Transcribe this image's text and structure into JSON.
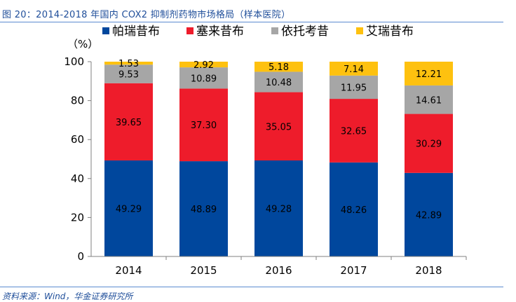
{
  "figure": {
    "title": "图 20：2014-2018 年国内 COX2 抑制剂药物市场格局（样本医院）",
    "source": "资料来源：Wind，华金证券研究所"
  },
  "chart_data": {
    "type": "bar",
    "stacked": true,
    "ylabel": "（%）",
    "ylim": [
      0,
      100
    ],
    "yticks": [
      0,
      20,
      40,
      60,
      80,
      100
    ],
    "categories": [
      "2014",
      "2015",
      "2016",
      "2017",
      "2018"
    ],
    "legend_position": "top",
    "series": [
      {
        "name": "帕瑞昔布",
        "color": "#00479d",
        "values": [
          49.29,
          48.89,
          49.28,
          48.26,
          42.89
        ]
      },
      {
        "name": "塞来昔布",
        "color": "#ee1c2b",
        "values": [
          39.65,
          37.3,
          35.05,
          32.65,
          30.29
        ]
      },
      {
        "name": "依托考昔",
        "color": "#a6a6a6",
        "values": [
          9.53,
          10.89,
          10.48,
          11.95,
          14.61
        ]
      },
      {
        "name": "艾瑞昔布",
        "color": "#fec10f",
        "values": [
          1.53,
          2.92,
          5.18,
          7.14,
          12.21
        ]
      }
    ],
    "labels": [
      [
        "49.29",
        "48.89",
        "49.28",
        "48.26",
        "42.89"
      ],
      [
        "39.65",
        "37.30",
        "35.05",
        "32.65",
        "30.29"
      ],
      [
        "9.53",
        "10.89",
        "10.48",
        "11.95",
        "14.61"
      ],
      [
        "1.53",
        "2.92",
        "5.18",
        "7.14",
        "12.21"
      ]
    ]
  }
}
